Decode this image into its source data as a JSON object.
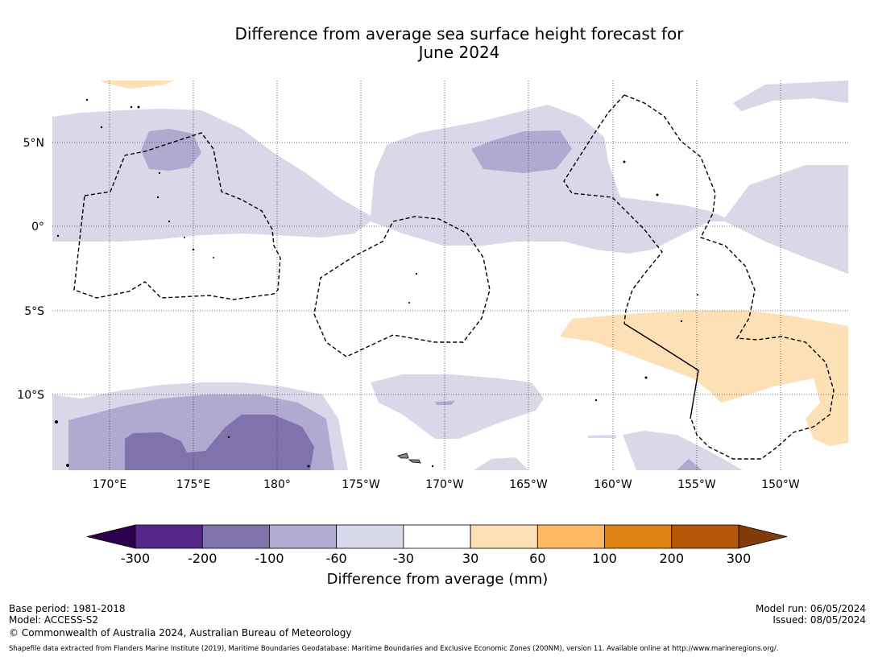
{
  "title_line1": "Difference from average sea surface height forecast for",
  "title_line2": "June 2024",
  "map": {
    "lat_labels": [
      "5°N",
      "0°",
      "5°S",
      "10°S"
    ],
    "lon_labels": [
      "170°E",
      "175°E",
      "180°",
      "175°W",
      "170°W",
      "165°W",
      "160°W",
      "155°W",
      "150°W"
    ],
    "colors": {
      "land": "#000000",
      "eez_line": "#000000"
    }
  },
  "colorbar": {
    "label": "Difference from average (mm)",
    "ticks": [
      "-300",
      "-200",
      "-100",
      "-60",
      "-30",
      "30",
      "60",
      "100",
      "200",
      "300"
    ],
    "under_color": "#2d004b",
    "over_color": "#7f3b08",
    "colors": [
      "#542788",
      "#8073ac",
      "#b2abd2",
      "#d8daeb",
      "#ffffff",
      "#fee0b6",
      "#fdb863",
      "#e08214",
      "#b35806"
    ]
  },
  "footer": {
    "base_period": "Base period: 1981-2018",
    "model": "Model: ACCESS-S2",
    "copyright": "© Commonwealth of Australia 2024, Australian Bureau of Meteorology",
    "model_run": "Model run: 06/05/2024",
    "issued": "Issued: 08/05/2024",
    "shapefile": "Shapefile data extracted from Flanders Marine Institute (2019), Maritime Boundaries Geodatabase: Maritime Boundaries and Exclusive Economic Zones (200NM), version 11. Available online at http://www.marineregions.org/."
  }
}
